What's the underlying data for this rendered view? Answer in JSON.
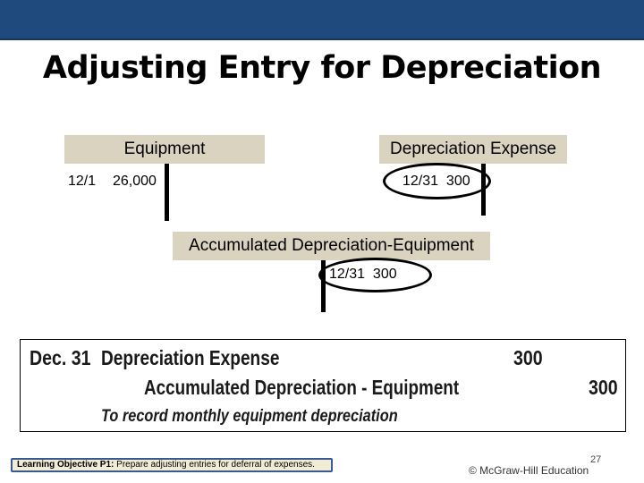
{
  "slide": {
    "title": "Adjusting Entry for Depreciation"
  },
  "t_accounts": {
    "equipment": {
      "name": "Equipment",
      "date": "12/1",
      "amount": "26,000"
    },
    "depreciation_expense": {
      "name": "Depreciation Expense",
      "entry": "12/31  300"
    },
    "accumulated_depreciation": {
      "name": "Accumulated Depreciation-Equipment",
      "entry": "12/31  300"
    }
  },
  "journal": {
    "date": "Dec. 31",
    "debit_account": "Depreciation Expense",
    "debit_amount": "300",
    "credit_account": "Accumulated Depreciation - Equipment",
    "credit_amount": "300",
    "explanation": "To record monthly equipment depreciation"
  },
  "footer": {
    "objective_label": "Learning Objective P1:",
    "objective_text": "Prepare adjusting entries for deferral of expenses.",
    "page_number": "27",
    "copyright": "© McGraw-Hill Education"
  },
  "colors": {
    "top_bar": "#1e4a7e",
    "account_header": "#d9d3c0",
    "footer_box_border": "#3a5a8f"
  }
}
